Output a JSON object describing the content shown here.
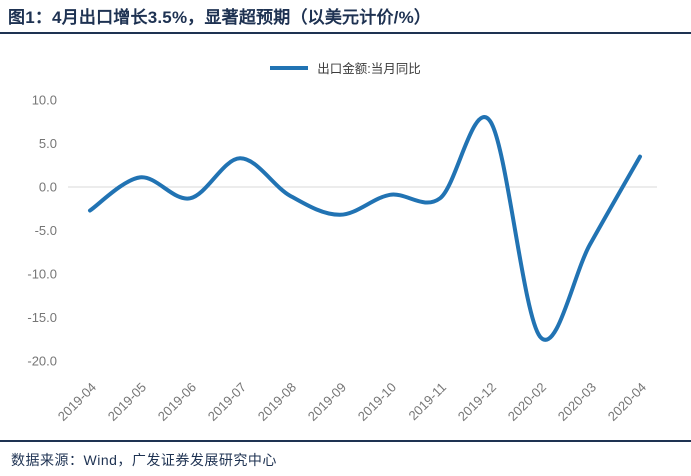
{
  "header": {
    "title": "图1：4月出口增长3.5%，显著超预期（以美元计价/%）"
  },
  "footer": {
    "source": "数据来源：Wind，广发证券发展研究中心"
  },
  "theme": {
    "accent_navy": "#1E3252",
    "line_blue": "#2173B3",
    "gridline_gray": "#D9D9D9",
    "axis_text_gray": "#767676",
    "legend_text_gray": "#3C3C3C"
  },
  "chart_data": {
    "type": "line",
    "smooth": true,
    "title": "图1：4月出口增长3.5%，显著超预期（以美元计价/%）",
    "xlabel": "",
    "ylabel": "",
    "categories": [
      "2019-04",
      "2019-05",
      "2019-06",
      "2019-07",
      "2019-08",
      "2019-09",
      "2019-10",
      "2019-11",
      "2019-12",
      "2020-02",
      "2020-03",
      "2020-04"
    ],
    "series": [
      {
        "name": "出口金额:当月同比",
        "color": "#2173B3",
        "values": [
          -2.7,
          1.1,
          -1.3,
          3.3,
          -1.0,
          -3.2,
          -0.9,
          -1.3,
          7.6,
          -17.2,
          -6.6,
          3.5
        ]
      }
    ],
    "ylim": [
      -20.0,
      10.0
    ],
    "ytick_labels": [
      "10.0",
      "5.0",
      "0.0",
      "-5.0",
      "-10.0",
      "-15.0",
      "-20.0"
    ],
    "grid": "zero-line-only",
    "legend_position": "top-center",
    "xtick_rotation_deg": -45
  }
}
